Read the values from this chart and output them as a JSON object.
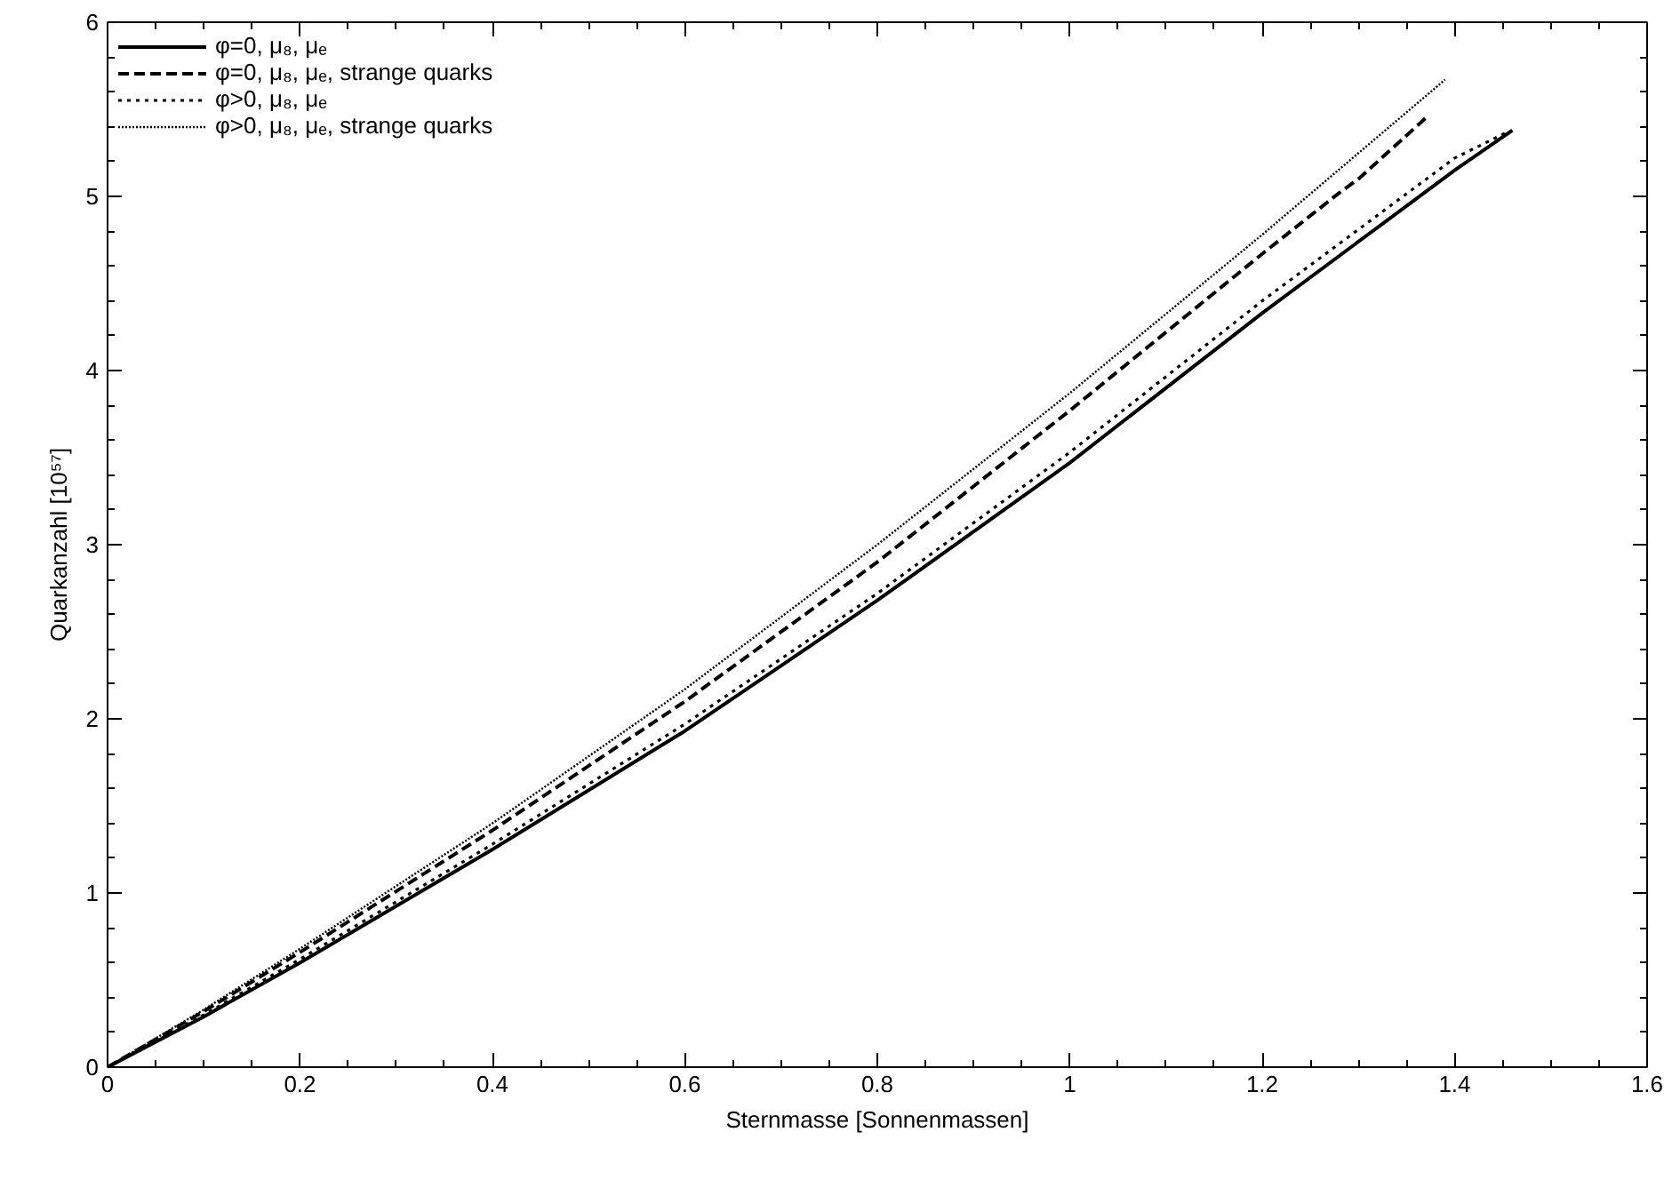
{
  "chart_data": {
    "type": "line",
    "xlabel": "Sternmasse [Sonnenmassen]",
    "ylabel": "Quarkanzahl [10⁵⁷]",
    "xlim": [
      0,
      1.6
    ],
    "ylim": [
      0,
      6
    ],
    "xticks": [
      0,
      0.2,
      0.4,
      0.6,
      0.8,
      1,
      1.2,
      1.4,
      1.6
    ],
    "yticks": [
      0,
      1,
      2,
      3,
      4,
      5,
      6
    ],
    "grid": false,
    "legend": "top left",
    "series": [
      {
        "name": "φ=0, μ₈, μₑ",
        "color": "#000000",
        "line_style": "solid",
        "x": [
          0,
          0.1,
          0.2,
          0.4,
          0.6,
          0.8,
          1.0,
          1.2,
          1.4,
          1.46
        ],
        "values": [
          0,
          0.29,
          0.6,
          1.25,
          1.93,
          2.68,
          3.47,
          4.33,
          5.15,
          5.38
        ]
      },
      {
        "name": "φ=0, μ₈, μₑ, strange quarks",
        "color": "#000000",
        "line_style": "dashed",
        "x": [
          0,
          0.1,
          0.2,
          0.4,
          0.6,
          0.8,
          1.0,
          1.2,
          1.28,
          1.3,
          1.37
        ],
        "values": [
          0,
          0.32,
          0.66,
          1.36,
          2.1,
          2.9,
          3.77,
          4.67,
          5.02,
          5.1,
          5.45
        ]
      },
      {
        "name": "φ>0, μ₈, μₑ",
        "color": "#000000",
        "line_style": "dotted",
        "x": [
          0,
          0.1,
          0.2,
          0.4,
          0.6,
          0.8,
          1.0,
          1.2,
          1.4,
          1.455
        ],
        "values": [
          0,
          0.3,
          0.62,
          1.28,
          1.97,
          2.72,
          3.53,
          4.4,
          5.22,
          5.37
        ]
      },
      {
        "name": "φ>0, μ₈, μₑ, strange quarks",
        "color": "#000000",
        "line_style": "dotted",
        "x": [
          0,
          0.1,
          0.2,
          0.4,
          0.6,
          0.8,
          1.0,
          1.2,
          1.39
        ],
        "values": [
          0,
          0.33,
          0.68,
          1.4,
          2.17,
          3.0,
          3.87,
          4.78,
          5.67
        ]
      }
    ]
  }
}
